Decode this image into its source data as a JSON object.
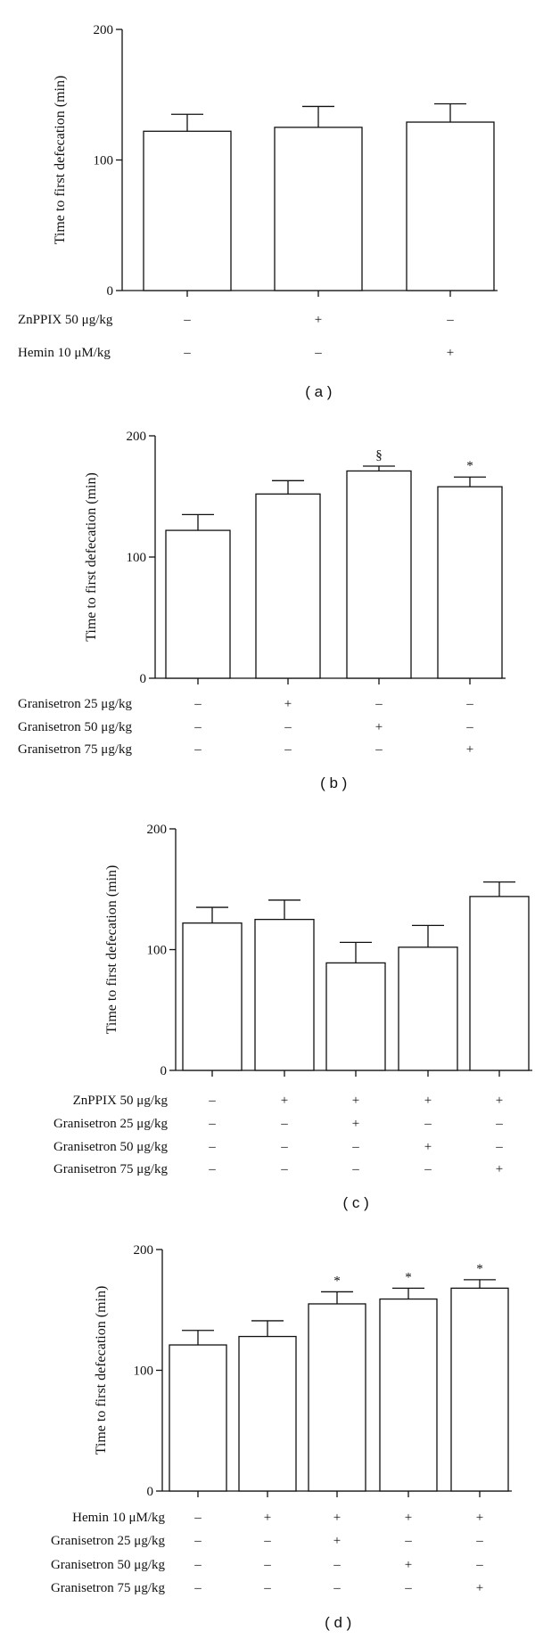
{
  "chart_data": [
    {
      "type": "bar",
      "panel_label": "( a )",
      "ylabel": "Time to first defecation (min)",
      "ylim": [
        0,
        200
      ],
      "yticks": [
        0,
        100,
        200
      ],
      "values": [
        122,
        125,
        129
      ],
      "errors": [
        13,
        16,
        14
      ],
      "annotations": [
        "",
        "",
        ""
      ],
      "rows": [
        {
          "label": "ZnPPIX 50 μg/kg",
          "signs": [
            "–",
            "+",
            "–"
          ]
        },
        {
          "label": "Hemin 10 μM/kg",
          "signs": [
            "–",
            "–",
            "+"
          ]
        }
      ]
    },
    {
      "type": "bar",
      "panel_label": "( b )",
      "ylabel": "Time to first defecation (min)",
      "ylim": [
        0,
        200
      ],
      "yticks": [
        0,
        100,
        200
      ],
      "values": [
        122,
        152,
        171,
        158
      ],
      "errors": [
        13,
        11,
        4,
        8
      ],
      "annotations": [
        "",
        "",
        "§",
        "*"
      ],
      "rows": [
        {
          "label": "Granisetron 25 μg/kg",
          "signs": [
            "–",
            "+",
            "–",
            "–"
          ]
        },
        {
          "label": "Granisetron 50 μg/kg",
          "signs": [
            "–",
            "–",
            "+",
            "–"
          ]
        },
        {
          "label": "Granisetron 75 μg/kg",
          "signs": [
            "–",
            "–",
            "–",
            "+"
          ]
        }
      ]
    },
    {
      "type": "bar",
      "panel_label": "( c )",
      "ylabel": "Time to first defecation (min)",
      "ylim": [
        0,
        200
      ],
      "yticks": [
        0,
        100,
        200
      ],
      "values": [
        122,
        125,
        89,
        102,
        144
      ],
      "errors": [
        13,
        16,
        17,
        18,
        12
      ],
      "annotations": [
        "",
        "",
        "",
        "",
        ""
      ],
      "rows": [
        {
          "label": "ZnPPIX 50 μg/kg",
          "signs": [
            "–",
            "+",
            "+",
            "+",
            "+"
          ]
        },
        {
          "label": "Granisetron 25 μg/kg",
          "signs": [
            "–",
            "–",
            "+",
            "–",
            "–"
          ]
        },
        {
          "label": "Granisetron 50 μg/kg",
          "signs": [
            "–",
            "–",
            "–",
            "+",
            "–"
          ]
        },
        {
          "label": "Granisetron 75 μg/kg",
          "signs": [
            "–",
            "–",
            "–",
            "–",
            "+"
          ]
        }
      ]
    },
    {
      "type": "bar",
      "panel_label": "( d )",
      "ylabel": "Time to first defecation (min)",
      "ylim": [
        0,
        200
      ],
      "yticks": [
        0,
        100,
        200
      ],
      "values": [
        121,
        128,
        155,
        159,
        168
      ],
      "errors": [
        12,
        13,
        10,
        9,
        7
      ],
      "annotations": [
        "",
        "",
        "*",
        "*",
        "*"
      ],
      "rows": [
        {
          "label": "Hemin 10 μM/kg",
          "signs": [
            "–",
            "+",
            "+",
            "+",
            "+"
          ]
        },
        {
          "label": "Granisetron 25 μg/kg",
          "signs": [
            "–",
            "–",
            "+",
            "–",
            "–"
          ]
        },
        {
          "label": "Granisetron 50 μg/kg",
          "signs": [
            "–",
            "–",
            "–",
            "+",
            "–"
          ]
        },
        {
          "label": "Granisetron 75 μg/kg",
          "signs": [
            "–",
            "–",
            "–",
            "–",
            "+"
          ]
        }
      ]
    }
  ]
}
